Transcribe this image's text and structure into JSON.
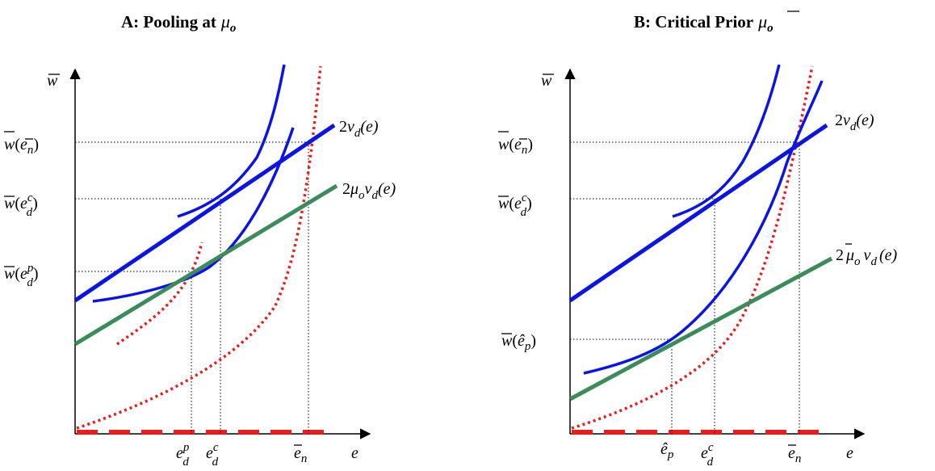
{
  "panels": [
    {
      "id": "A",
      "title": "A: Pooling at",
      "title_symbol": "μ",
      "title_symbol_sub": "o",
      "axis_y": "w",
      "axis_x": "e",
      "y_labels": {
        "wn": {
          "w": "w",
          "paren_open": "(",
          "e": "e",
          "sub": "n",
          "paren_close": ")"
        },
        "wdc": {
          "w": "w",
          "paren_open": "(",
          "e": "e",
          "sup": "c",
          "sub": "d",
          "paren_close": ")"
        },
        "wdp": {
          "w": "w",
          "paren_open": "(",
          "e": "e",
          "sup": "p",
          "sub": "d",
          "paren_close": ")"
        }
      },
      "x_labels": {
        "edp": {
          "e": "e",
          "sup": "p",
          "sub": "d"
        },
        "edc": {
          "e": "e",
          "sup": "c",
          "sub": "d"
        },
        "en": {
          "e": "e",
          "sub": "n"
        }
      },
      "line_labels": {
        "twovd": {
          "coef": "2",
          "v": "v",
          "sub": "d",
          "arg": "(e)"
        },
        "twomuvd": {
          "coef": "2",
          "mu": "μ",
          "mu_sub": "o",
          "v": "v",
          "sub": "d",
          "arg": "(e)"
        }
      }
    },
    {
      "id": "B",
      "title": "B: Critical Prior",
      "title_symbol": "μ",
      "title_symbol_sub": "o",
      "axis_y": "w",
      "axis_x": "e",
      "y_labels": {
        "wn": {
          "w": "w",
          "paren_open": "(",
          "e": "e",
          "sub": "n",
          "paren_close": ")"
        },
        "wdc": {
          "w": "w",
          "paren_open": "(",
          "e": "e",
          "sup": "c",
          "sub": "d",
          "paren_close": ")"
        },
        "whatp": {
          "w": "w",
          "paren_open": "(",
          "e": "ê",
          "sub": "p",
          "paren_close": ")"
        }
      },
      "x_labels": {
        "ehatp": {
          "e": "ê",
          "sub": "p"
        },
        "edc": {
          "e": "e",
          "sup": "c",
          "sub": "d"
        },
        "en": {
          "e": "e",
          "sub": "n"
        }
      },
      "line_labels": {
        "twovd": {
          "coef": "2",
          "v": "v",
          "sub": "d",
          "arg": "(e)"
        },
        "twomuvd": {
          "coef": "2",
          "mu": "μ",
          "mu_sub": "o",
          "v": "v",
          "sub": "d",
          "arg": "(e)"
        }
      }
    }
  ],
  "colors": {
    "blue": "#0a14e6",
    "green": "#3c8c5a",
    "red": "#e61e1e",
    "axis": "#000000"
  }
}
